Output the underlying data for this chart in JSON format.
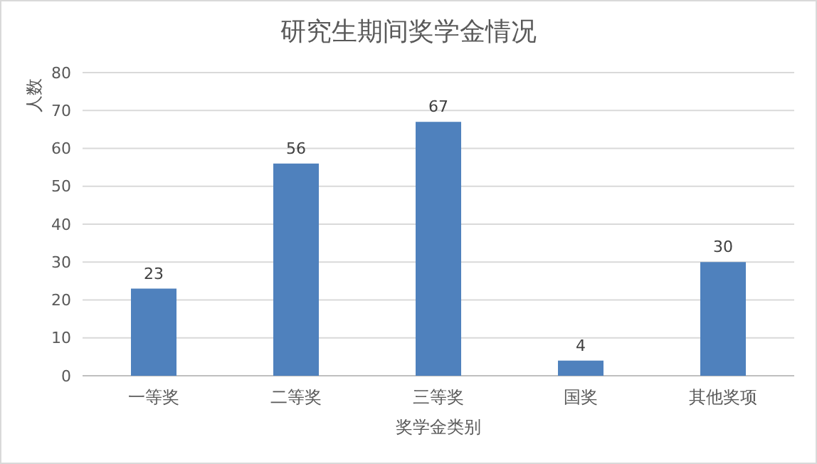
{
  "chart_data": {
    "type": "bar",
    "title": "研究生期间奖学金情况",
    "xlabel": "奖学金类别",
    "ylabel": "人数",
    "categories": [
      "一等奖",
      "二等奖",
      "三等奖",
      "国奖",
      "其他奖项"
    ],
    "values": [
      23,
      56,
      67,
      4,
      30
    ],
    "color": "#4f81bd",
    "ylim": [
      0,
      80
    ],
    "yticks": [
      0,
      10,
      20,
      30,
      40,
      50,
      60,
      70,
      80
    ],
    "grid": "y",
    "data_labels": true
  }
}
